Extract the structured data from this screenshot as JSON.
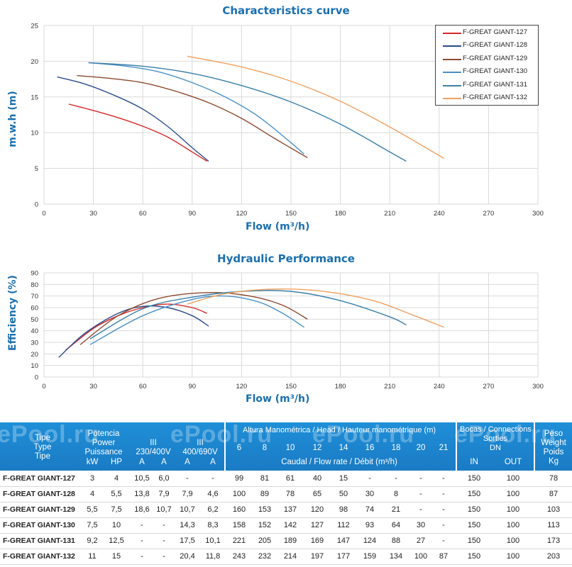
{
  "chart_data": [
    {
      "type": "line",
      "title": "Characteristics curve",
      "xlabel": "Flow (m³/h)",
      "ylabel": "m.w.h (m)",
      "xlim": [
        0,
        300
      ],
      "ylim": [
        0,
        25
      ],
      "xticks": [
        0,
        30,
        60,
        90,
        120,
        150,
        180,
        210,
        240,
        270,
        300
      ],
      "yticks": [
        0,
        5,
        10,
        15,
        20,
        25
      ],
      "grid": true,
      "legend_position": "top-right",
      "series": [
        {
          "name": "F-GREAT  GIANT-127",
          "color": "#d62728",
          "points": [
            [
              15,
              14
            ],
            [
              30,
              13.1
            ],
            [
              45,
              12.1
            ],
            [
              60,
              10.9
            ],
            [
              75,
              9.4
            ],
            [
              90,
              7.3
            ],
            [
              99,
              6
            ]
          ]
        },
        {
          "name": "F-GREAT  GIANT-128",
          "color": "#2b4b8c",
          "points": [
            [
              8,
              17.8
            ],
            [
              25,
              16.8
            ],
            [
              45,
              15
            ],
            [
              60,
              13.3
            ],
            [
              75,
              10.9
            ],
            [
              90,
              7.9
            ],
            [
              100,
              6
            ]
          ]
        },
        {
          "name": "F-GREAT  GIANT-129",
          "color": "#8c4a2f",
          "points": [
            [
              20,
              18
            ],
            [
              40,
              17.6
            ],
            [
              60,
              17
            ],
            [
              80,
              15.8
            ],
            [
              100,
              14.2
            ],
            [
              120,
              12
            ],
            [
              140,
              9.2
            ],
            [
              160,
              6.5
            ]
          ]
        },
        {
          "name": "F-GREAT  GIANT-130",
          "color": "#4a90c8",
          "points": [
            [
              27,
              19.8
            ],
            [
              50,
              19.3
            ],
            [
              70,
              18.5
            ],
            [
              90,
              17
            ],
            [
              110,
              15
            ],
            [
              130,
              12.3
            ],
            [
              150,
              8.6
            ],
            [
              158,
              7
            ]
          ]
        },
        {
          "name": "F-GREAT  GIANT-131",
          "color": "#3a7fa8",
          "points": [
            [
              27,
              19.8
            ],
            [
              60,
              19.3
            ],
            [
              90,
              18.3
            ],
            [
              120,
              16.6
            ],
            [
              150,
              14.3
            ],
            [
              180,
              11.2
            ],
            [
              210,
              7.3
            ],
            [
              220,
              6
            ]
          ]
        },
        {
          "name": "F-GREAT  GIANT-132",
          "color": "#f0a060",
          "points": [
            [
              87,
              20.7
            ],
            [
              120,
              19.2
            ],
            [
              150,
              17.2
            ],
            [
              180,
              14.4
            ],
            [
              210,
              10.8
            ],
            [
              243,
              6.4
            ]
          ]
        }
      ]
    },
    {
      "type": "line",
      "title": "Hydraulic Performance",
      "xlabel": "Flow (m³/h)",
      "ylabel": "Efficiency (%)",
      "xlim": [
        0,
        300
      ],
      "ylim": [
        0,
        90
      ],
      "xticks": [
        0,
        30,
        60,
        90,
        120,
        150,
        180,
        210,
        240,
        270,
        300
      ],
      "yticks": [
        0,
        10,
        20,
        30,
        40,
        50,
        60,
        70,
        80,
        90
      ],
      "grid": true,
      "series": [
        {
          "name": "F-GREAT  GIANT-127",
          "color": "#d62728",
          "points": [
            [
              13,
              23
            ],
            [
              30,
              42
            ],
            [
              45,
              53
            ],
            [
              60,
              60
            ],
            [
              75,
              63
            ],
            [
              90,
              60
            ],
            [
              99,
              55
            ]
          ]
        },
        {
          "name": "F-GREAT  GIANT-128",
          "color": "#2b4b8c",
          "points": [
            [
              9,
              17
            ],
            [
              25,
              38
            ],
            [
              45,
              55
            ],
            [
              60,
              61
            ],
            [
              75,
              60
            ],
            [
              90,
              53
            ],
            [
              100,
              44
            ]
          ]
        },
        {
          "name": "F-GREAT  GIANT-129",
          "color": "#8c4a2f",
          "points": [
            [
              22,
              28
            ],
            [
              45,
              53
            ],
            [
              70,
              68
            ],
            [
              100,
              73
            ],
            [
              125,
              70
            ],
            [
              145,
              62
            ],
            [
              160,
              50
            ]
          ]
        },
        {
          "name": "F-GREAT  GIANT-130",
          "color": "#4a90c8",
          "points": [
            [
              28,
              28
            ],
            [
              60,
              53
            ],
            [
              90,
              67
            ],
            [
              110,
              70
            ],
            [
              130,
              65
            ],
            [
              145,
              55
            ],
            [
              158,
              43
            ]
          ]
        },
        {
          "name": "F-GREAT  GIANT-131",
          "color": "#3a7fa8",
          "points": [
            [
              28,
              33
            ],
            [
              60,
              59
            ],
            [
              90,
              69
            ],
            [
              120,
              74
            ],
            [
              150,
              74
            ],
            [
              180,
              66
            ],
            [
              210,
              52
            ],
            [
              220,
              45
            ]
          ]
        },
        {
          "name": "F-GREAT  GIANT-132",
          "color": "#f0a060",
          "points": [
            [
              87,
              63
            ],
            [
              110,
              72
            ],
            [
              140,
              76
            ],
            [
              170,
              74
            ],
            [
              200,
              66
            ],
            [
              225,
              53
            ],
            [
              243,
              43
            ]
          ]
        }
      ]
    }
  ],
  "table": {
    "h_type": [
      "Tipe",
      "Type",
      "Tipe"
    ],
    "h_power": [
      "Potencia",
      "Power",
      "Puissance"
    ],
    "h_kw": "kW",
    "h_hp": "HP",
    "h_tri1": "III",
    "h_tri1_v": "230/400V",
    "h_tri2": "III",
    "h_tri2_v": "400/690V",
    "h_a": "A",
    "h_head": "Altura Manométrica / Head / Hauteur manométrique (m)",
    "h_flow": "Caudal / Flow rate / Débit (m³/h)",
    "heads": [
      "6",
      "8",
      "10",
      "12",
      "14",
      "16",
      "18",
      "20",
      "21"
    ],
    "h_conn": [
      "Bocas / Connections",
      "Sorties",
      "DN"
    ],
    "h_in": "IN",
    "h_out": "OUT",
    "h_weight": [
      "Peso",
      "Weight",
      "Poids",
      "Kg"
    ],
    "watermark": "ePool.ru",
    "rows": [
      {
        "type": "F-GREAT GIANT-127",
        "kw": "3",
        "hp": "4",
        "a1": "10,5",
        "a2": "6,0",
        "a3": "-",
        "a4": "-",
        "f": [
          "99",
          "81",
          "61",
          "40",
          "15",
          "-",
          "-",
          "-",
          "-"
        ],
        "in": "150",
        "out": "100",
        "kg": "78"
      },
      {
        "type": "F-GREAT GIANT-128",
        "kw": "4",
        "hp": "5,5",
        "a1": "13,8",
        "a2": "7,9",
        "a3": "7,9",
        "a4": "4,6",
        "f": [
          "100",
          "89",
          "78",
          "65",
          "50",
          "30",
          "8",
          "-",
          "-"
        ],
        "in": "150",
        "out": "100",
        "kg": "87"
      },
      {
        "type": "F-GREAT GIANT-129",
        "kw": "5,5",
        "hp": "7,5",
        "a1": "18,6",
        "a2": "10,7",
        "a3": "10,7",
        "a4": "6,2",
        "f": [
          "160",
          "153",
          "137",
          "120",
          "98",
          "74",
          "21",
          "-",
          "-"
        ],
        "in": "150",
        "out": "100",
        "kg": "103"
      },
      {
        "type": "F-GREAT GIANT-130",
        "kw": "7,5",
        "hp": "10",
        "a1": "-",
        "a2": "-",
        "a3": "14,3",
        "a4": "8,3",
        "f": [
          "158",
          "152",
          "142",
          "127",
          "112",
          "93",
          "64",
          "30",
          "-"
        ],
        "in": "150",
        "out": "100",
        "kg": "113"
      },
      {
        "type": "F-GREAT GIANT-131",
        "kw": "9,2",
        "hp": "12,5",
        "a1": "-",
        "a2": "-",
        "a3": "17,5",
        "a4": "10,1",
        "f": [
          "221",
          "205",
          "189",
          "169",
          "147",
          "124",
          "88",
          "27",
          "-"
        ],
        "in": "150",
        "out": "100",
        "kg": "173"
      },
      {
        "type": "F-GREAT GIANT-132",
        "kw": "11",
        "hp": "15",
        "a1": "-",
        "a2": "-",
        "a3": "20,4",
        "a4": "11,8",
        "f": [
          "243",
          "232",
          "214",
          "197",
          "177",
          "159",
          "134",
          "100",
          "87"
        ],
        "in": "150",
        "out": "100",
        "kg": "203"
      }
    ]
  }
}
